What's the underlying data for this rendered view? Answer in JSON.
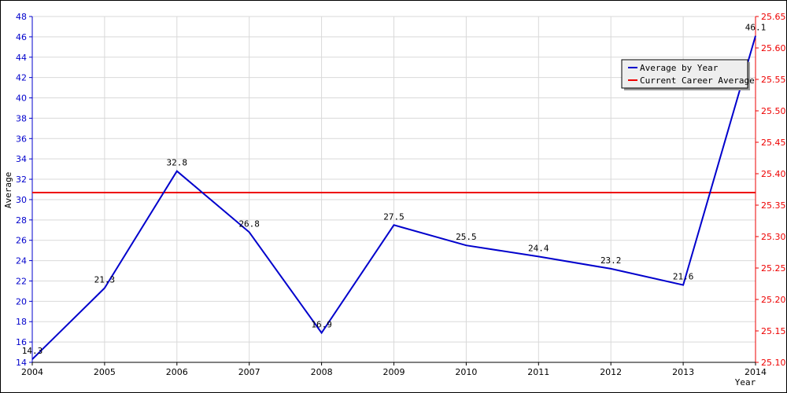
{
  "chart_data": {
    "type": "line",
    "xlabel": "Year",
    "ylabel": "Average",
    "x": [
      2004,
      2005,
      2006,
      2007,
      2008,
      2009,
      2010,
      2011,
      2012,
      2013,
      2014
    ],
    "x_ticks": [
      "2004",
      "2005",
      "2006",
      "2007",
      "2008",
      "2009",
      "2010",
      "2011",
      "2012",
      "2013",
      "2014"
    ],
    "ylim": [
      14,
      48
    ],
    "y_ticks": [
      "14",
      "16",
      "18",
      "20",
      "22",
      "24",
      "26",
      "28",
      "30",
      "32",
      "34",
      "36",
      "38",
      "40",
      "42",
      "44",
      "46",
      "48"
    ],
    "y2lim": [
      25.1,
      25.65
    ],
    "y2_ticks": [
      "25.10",
      "25.15",
      "25.20",
      "25.25",
      "25.30",
      "25.35",
      "25.40",
      "25.45",
      "25.50",
      "25.55",
      "25.60",
      "25.65"
    ],
    "grid": true,
    "legend_position": "top-right",
    "series": [
      {
        "name": "Average by Year",
        "axis": "left",
        "color": "#0000cc",
        "values": [
          14.3,
          21.3,
          32.8,
          26.8,
          16.9,
          27.5,
          25.5,
          24.4,
          23.2,
          21.6,
          46.1
        ],
        "labels": [
          "14.3",
          "21.3",
          "32.8",
          "26.8",
          "16.9",
          "27.5",
          "25.5",
          "24.4",
          "23.2",
          "21.6",
          "46.1"
        ]
      },
      {
        "name": "Current Career Average",
        "axis": "right",
        "color": "#ee0000",
        "value": 25.37
      }
    ]
  }
}
